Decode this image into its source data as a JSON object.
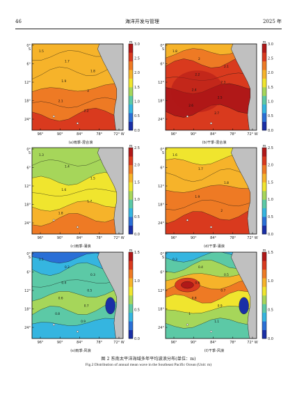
{
  "header": {
    "page_number": "46",
    "journal": "海洋开发与管理",
    "year": "2025 年"
  },
  "figure": {
    "caption_cn": "图 2   东南太平洋海域多年平均波浪分布(单位：m)",
    "caption_en": "Fig.2   Distribution of annual mean wave in the Southeast Pacific Ocean (Unit: m)"
  },
  "axes": {
    "x_ticks": [
      "96°",
      "90°",
      "84°",
      "78°",
      "72° W"
    ],
    "y_ticks": [
      "0°\nS",
      "6°",
      "12°",
      "18°",
      "24°"
    ],
    "y_top": "0°",
    "y_top_s": "S"
  },
  "colors": {
    "land": "#c0c0c0",
    "colormap": [
      "#1a2fa6",
      "#2a6fd6",
      "#35b5e0",
      "#5cc9a6",
      "#a6d65a",
      "#f0e52e",
      "#f6b32a",
      "#ee7a24",
      "#d93a1e",
      "#b01818"
    ]
  },
  "chart_data": [
    {
      "type": "heatmap",
      "caption": "(a)雨季-混合浪",
      "colorbar_unit": "m",
      "colorbar_ticks": [
        "3.0",
        "2.5",
        "2.0",
        "1.5",
        "1.0",
        "0.5",
        "0.0"
      ],
      "vmax": 3.0,
      "contour_labels": [
        "1.5",
        "1.7",
        "1.8",
        "1.9",
        "2",
        "2.1",
        "2.2"
      ]
    },
    {
      "type": "heatmap",
      "caption": "(b)干季-混合浪",
      "colorbar_unit": "m",
      "colorbar_ticks": [
        "3.0",
        "2.5",
        "2.0",
        "1.5",
        "1.0",
        "0.5",
        "0.0"
      ],
      "vmax": 3.0,
      "contour_labels": [
        "1.8",
        "2",
        "2.1",
        "2.2",
        "2.3",
        "2.4",
        "2.5",
        "2.6",
        "2.7"
      ]
    },
    {
      "type": "heatmap",
      "caption": "(c)雨季-涌浪",
      "colorbar_unit": "m",
      "colorbar_ticks": [
        "2.5",
        "2.0",
        "1.5",
        "1.0",
        "0.5",
        "0.0"
      ],
      "vmax": 2.5,
      "contour_labels": [
        "1.3",
        "1.4",
        "1.5",
        "1.6",
        "1.7",
        "1.8"
      ]
    },
    {
      "type": "heatmap",
      "caption": "(d)干季-涌浪",
      "colorbar_unit": "m",
      "colorbar_ticks": [
        "2.5",
        "2.0",
        "1.5",
        "1.0",
        "0.5",
        "0.0"
      ],
      "vmax": 2.5,
      "contour_labels": [
        "1.6",
        "1.7",
        "1.8",
        "1.9",
        "2"
      ]
    },
    {
      "type": "heatmap",
      "caption": "(e)雨季-风浪",
      "colorbar_unit": "m",
      "colorbar_ticks": [
        "1.5",
        "1.0",
        "0.5",
        "0.0"
      ],
      "vmax": 1.5,
      "contour_labels": [
        "0.1",
        "0.2",
        "0.3",
        "0.4",
        "0.5",
        "0.6",
        "0.7",
        "0.8",
        "0.9"
      ]
    },
    {
      "type": "heatmap",
      "caption": "(f)干季-风浪",
      "colorbar_unit": "m",
      "colorbar_ticks": [
        "1.5",
        "1.0",
        "0.5",
        "0.0"
      ],
      "vmax": 1.5,
      "contour_labels": [
        "0.3",
        "0.4",
        "0.5",
        "0.6",
        "0.7",
        "0.8",
        "0.9",
        "1",
        "1.1"
      ]
    }
  ]
}
